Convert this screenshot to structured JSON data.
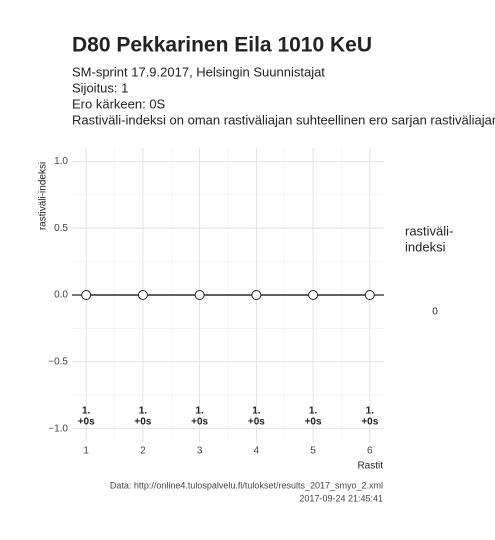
{
  "chart_data": {
    "type": "line",
    "title": "D80 Pekkarinen Eila 1010 KeU",
    "subtitle": [
      "SM-sprint 17.9.2017, Helsingin Suunnistajat",
      "Sijoitus: 1",
      "Ero kärkeen: 0S",
      "Rastiväli-indeksi on oman rastiväliajan suhteellinen ero sarjan rastiväliajan"
    ],
    "x_label": "Rastit",
    "y_label": "rastiväli-indeksi",
    "x": [
      1,
      2,
      3,
      4,
      5,
      6
    ],
    "series": [
      {
        "color": "#222222",
        "values": [
          0,
          0,
          0,
          0,
          0,
          0
        ]
      }
    ],
    "point_labels": [
      {
        "rank": "1.",
        "diff": "+0s"
      },
      {
        "rank": "1.",
        "diff": "+0s"
      },
      {
        "rank": "1.",
        "diff": "+0s"
      },
      {
        "rank": "1.",
        "diff": "+0s"
      },
      {
        "rank": "1.",
        "diff": "+0s"
      },
      {
        "rank": "1.",
        "diff": "+0s"
      }
    ],
    "xlim": [
      0.75,
      6.25
    ],
    "xticks": [
      1,
      2,
      3,
      4,
      5,
      6
    ],
    "ylim": [
      -1.1,
      1.1
    ],
    "yticks": [
      {
        "value": -1,
        "label": "−1.0"
      },
      {
        "value": -0.5,
        "label": "−0.5"
      },
      {
        "value": 0,
        "label": "0.0"
      },
      {
        "value": 0.5,
        "label": "0.5"
      },
      {
        "value": 1,
        "label": "1.0"
      }
    ],
    "grid": true,
    "legend": {
      "title": [
        "rastiväli-",
        "indeksi"
      ],
      "labels": [
        "0"
      ]
    },
    "caption": [
      "Data: http://online4.tulospalvelu.fi/tulokset/results_2017_smyo_2.xml",
      "2017-09-24 21:45:41"
    ]
  }
}
